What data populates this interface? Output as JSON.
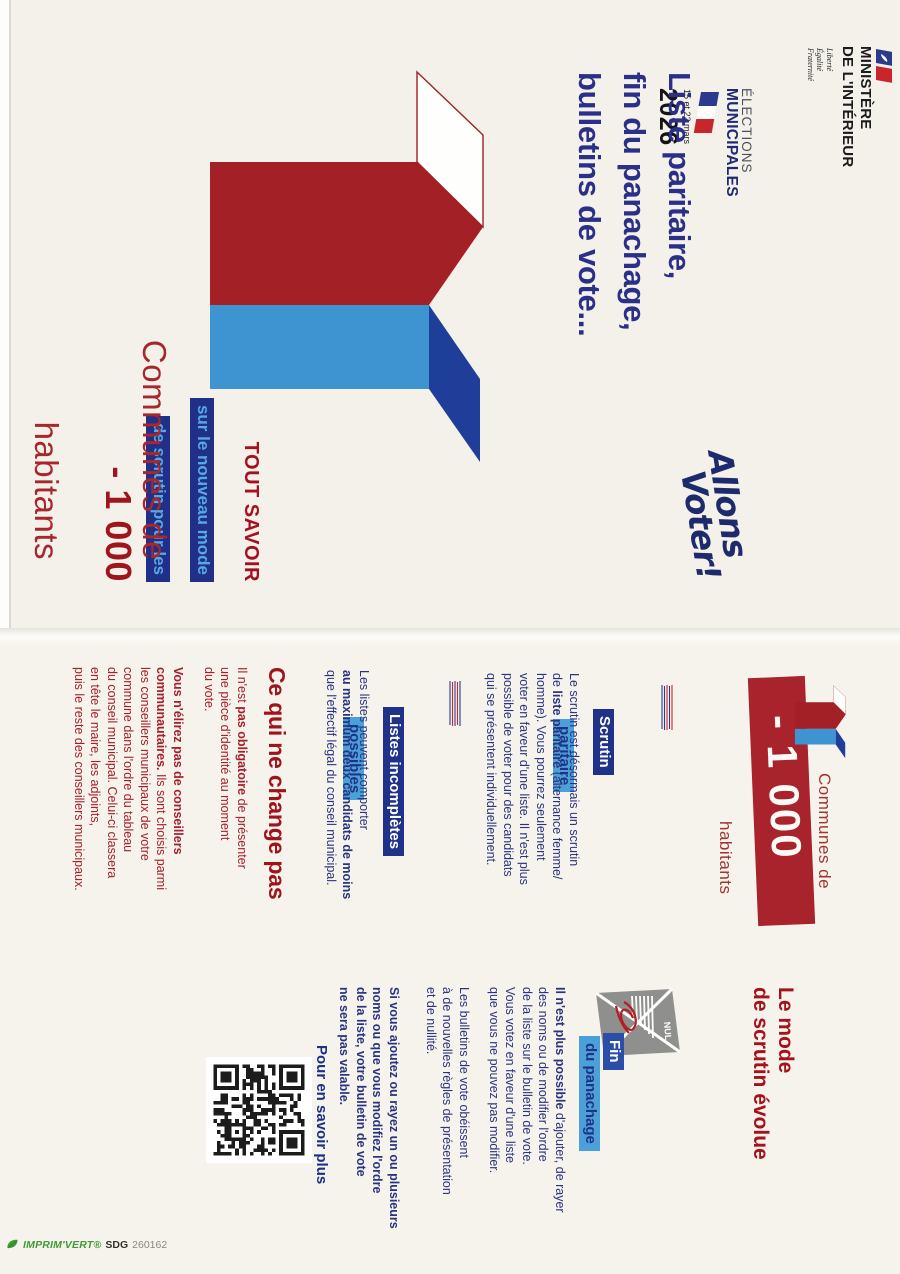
{
  "colors": {
    "navy": "#2a3380",
    "red": "#a41d24",
    "light_blue": "#3e93d1",
    "dark_blue": "#1e3e99",
    "label_navy": "#203189",
    "label_blue": "#4ba0d8",
    "paper": "#f3f1ea",
    "green": "#3f9b35"
  },
  "page1": {
    "ministry": {
      "name": "MINISTÈRE\nDE L'INTÉRIEUR",
      "motto": "Liberté\nÉgalité\nFraternité"
    },
    "elections_logo": {
      "line1": "ÉLECTIONS",
      "line2": "MUNICIPALES",
      "dates": "15 et 22 mars",
      "year": "2026"
    },
    "slogan": {
      "line1": "Allons",
      "line2": "Voter!"
    },
    "title": "Liste paritaire,\nfin du panachage,\nbulletins de vote...",
    "banner": {
      "heading": "TOUT SAVOIR",
      "line1": "sur le nouveau mode",
      "line2": "de scrutin pour les"
    },
    "communes": {
      "line1": "Communes de",
      "line2": "- 1 000",
      "line3": "habitants"
    }
  },
  "page2": {
    "header": {
      "above": "Communes de",
      "value": "- 1 000",
      "below": "habitants"
    },
    "heading": "Le mode\nde scrutin évolue",
    "scrutin": {
      "label1": "Scrutin",
      "label2": "paritaire",
      "body": "Le scrutin est désormais un scrutin\nde **liste paritaire** (alternance femme/\nhomme). Vous pourrez seulement\nvoter en faveur d'une liste. Il n'est plus\npossible de voter pour des candidats\nqui se présentent individuellement."
    },
    "listes": {
      "label1": "Listes incomplètes",
      "label2": "possibles",
      "body": "Les listes peuvent comporter\n**au maximum deux candidats de moins**\nque l'effectif légal du conseil municipal."
    },
    "change": {
      "heading": "Ce qui ne change pas",
      "p1": "Il n'est **pas obligatoire** de présenter\nune pièce d'identité au moment\ndu vote.",
      "p2": "**Vous n'élirez pas de conseillers\ncommunautaires.** Ils sont choisis parmi\nles conseillers municipaux de votre\ncommune dans l'ordre du tableau\ndu conseil municipal. Celui-ci classera\nen tête le maire, les adjoints,\npuis le reste des conseillers municipaux."
    },
    "fin": {
      "label1": "Fin",
      "label2": "du panachage",
      "nul": "NUL",
      "p1": "**Il n'est plus possible** d'ajouter, de rayer\ndes noms ou de modifier l'ordre\nde la liste sur le bulletin de vote.\nVous votez en faveur d'une liste\nque vous ne pouvez pas modifier.",
      "p2": "Les bulletins de vote obéissent\nà de nouvelles règles de présentation\net de nullité.",
      "p3": "**Si vous ajoutez ou rayez un ou plusieurs\nnoms ou que vous modifiez l'ordre\nde la liste, votre bulletin de vote\nne sera pas valable.**"
    },
    "more": "Pour en savoir plus"
  },
  "footer": {
    "label": "IMPRIM'VERT®",
    "org": "SDG",
    "number": "260162"
  }
}
